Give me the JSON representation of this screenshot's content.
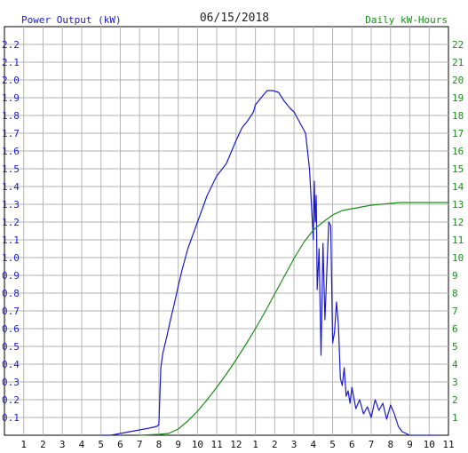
{
  "chart_data": {
    "type": "line",
    "title": "06/15/2018",
    "ylabel_left": "Power Output (kW)",
    "ylabel_right": "Daily kW-Hours",
    "x_ticks": [
      "1",
      "2",
      "3",
      "4",
      "5",
      "6",
      "7",
      "8",
      "9",
      "10",
      "11",
      "12",
      "1",
      "2",
      "3",
      "4",
      "5",
      "6",
      "7",
      "8",
      "9",
      "10",
      "11"
    ],
    "y_left_ticks": [
      "0.1",
      "0.2",
      "0.3",
      "0.4",
      "0.5",
      "0.6",
      "0.7",
      "0.8",
      "0.9",
      "1.0",
      "1.1",
      "1.2",
      "1.3",
      "1.4",
      "1.5",
      "1.6",
      "1.7",
      "1.8",
      "1.9",
      "2.0",
      "2.1",
      "2.2"
    ],
    "y_right_ticks": [
      "1",
      "2",
      "3",
      "4",
      "5",
      "6",
      "7",
      "8",
      "9",
      "10",
      "11",
      "12",
      "13",
      "14",
      "15",
      "16",
      "17",
      "18",
      "19",
      "20",
      "21",
      "22"
    ],
    "xlim": [
      0,
      23
    ],
    "ylim_left": [
      0,
      2.3
    ],
    "ylim_right": [
      0,
      23
    ],
    "grid": true,
    "colors": {
      "power": "#1a1acc",
      "energy": "#1a8c1a",
      "left_axis": "#1a1acc",
      "right_axis": "#1a8c1a",
      "grid": "#b4b4b4"
    },
    "series": [
      {
        "key": "power",
        "axis": "left",
        "x": [
          5.0,
          5.5,
          6.0,
          6.5,
          7.0,
          7.5,
          7.9,
          8.0,
          8.1,
          8.2,
          8.4,
          8.6,
          8.8,
          9.0,
          9.2,
          9.5,
          10.0,
          10.5,
          11.0,
          11.5,
          12.0,
          12.3,
          12.6,
          12.9,
          13.0,
          13.3,
          13.6,
          13.9,
          14.2,
          14.5,
          14.8,
          15.0,
          15.3,
          15.6,
          15.8,
          15.9,
          16.0,
          16.05,
          16.1,
          16.15,
          16.2,
          16.3,
          16.4,
          16.45,
          16.5,
          16.6,
          16.7,
          16.8,
          16.9,
          17.0,
          17.1,
          17.2,
          17.3,
          17.4,
          17.5,
          17.6,
          17.7,
          17.8,
          17.9,
          18.0,
          18.2,
          18.4,
          18.6,
          18.8,
          19.0,
          19.2,
          19.4,
          19.6,
          19.8,
          20.0,
          20.2,
          20.4,
          20.6,
          20.8,
          21.0,
          21.5,
          22.0,
          22.5
        ],
        "y": [
          0.0,
          0.0,
          0.01,
          0.02,
          0.03,
          0.04,
          0.05,
          0.06,
          0.38,
          0.46,
          0.55,
          0.65,
          0.74,
          0.84,
          0.93,
          1.05,
          1.2,
          1.35,
          1.46,
          1.53,
          1.66,
          1.73,
          1.77,
          1.82,
          1.86,
          1.9,
          1.94,
          1.94,
          1.93,
          1.88,
          1.84,
          1.82,
          1.76,
          1.7,
          1.5,
          1.3,
          1.1,
          1.43,
          1.2,
          1.35,
          0.82,
          1.05,
          0.45,
          0.75,
          1.08,
          0.65,
          0.92,
          1.2,
          1.18,
          0.52,
          0.58,
          0.75,
          0.62,
          0.32,
          0.28,
          0.38,
          0.22,
          0.25,
          0.18,
          0.27,
          0.15,
          0.2,
          0.12,
          0.16,
          0.1,
          0.2,
          0.14,
          0.18,
          0.09,
          0.17,
          0.12,
          0.05,
          0.02,
          0.01,
          0.0,
          0.0,
          0.0,
          0.0
        ]
      },
      {
        "key": "energy",
        "axis": "right",
        "x": [
          7.0,
          8.0,
          8.5,
          9.0,
          9.5,
          10.0,
          10.5,
          11.0,
          11.5,
          12.0,
          12.5,
          13.0,
          13.5,
          14.0,
          14.5,
          15.0,
          15.5,
          16.0,
          16.5,
          17.0,
          17.5,
          18.0,
          18.5,
          19.0,
          19.5,
          20.0,
          20.5,
          21.0,
          22.0,
          23.0
        ],
        "y": [
          0.0,
          0.05,
          0.1,
          0.35,
          0.8,
          1.35,
          2.0,
          2.7,
          3.45,
          4.25,
          5.1,
          6.0,
          6.95,
          7.95,
          8.95,
          9.95,
          10.85,
          11.55,
          12.0,
          12.4,
          12.65,
          12.75,
          12.85,
          12.95,
          13.0,
          13.05,
          13.1,
          13.1,
          13.1,
          13.1
        ]
      }
    ]
  }
}
